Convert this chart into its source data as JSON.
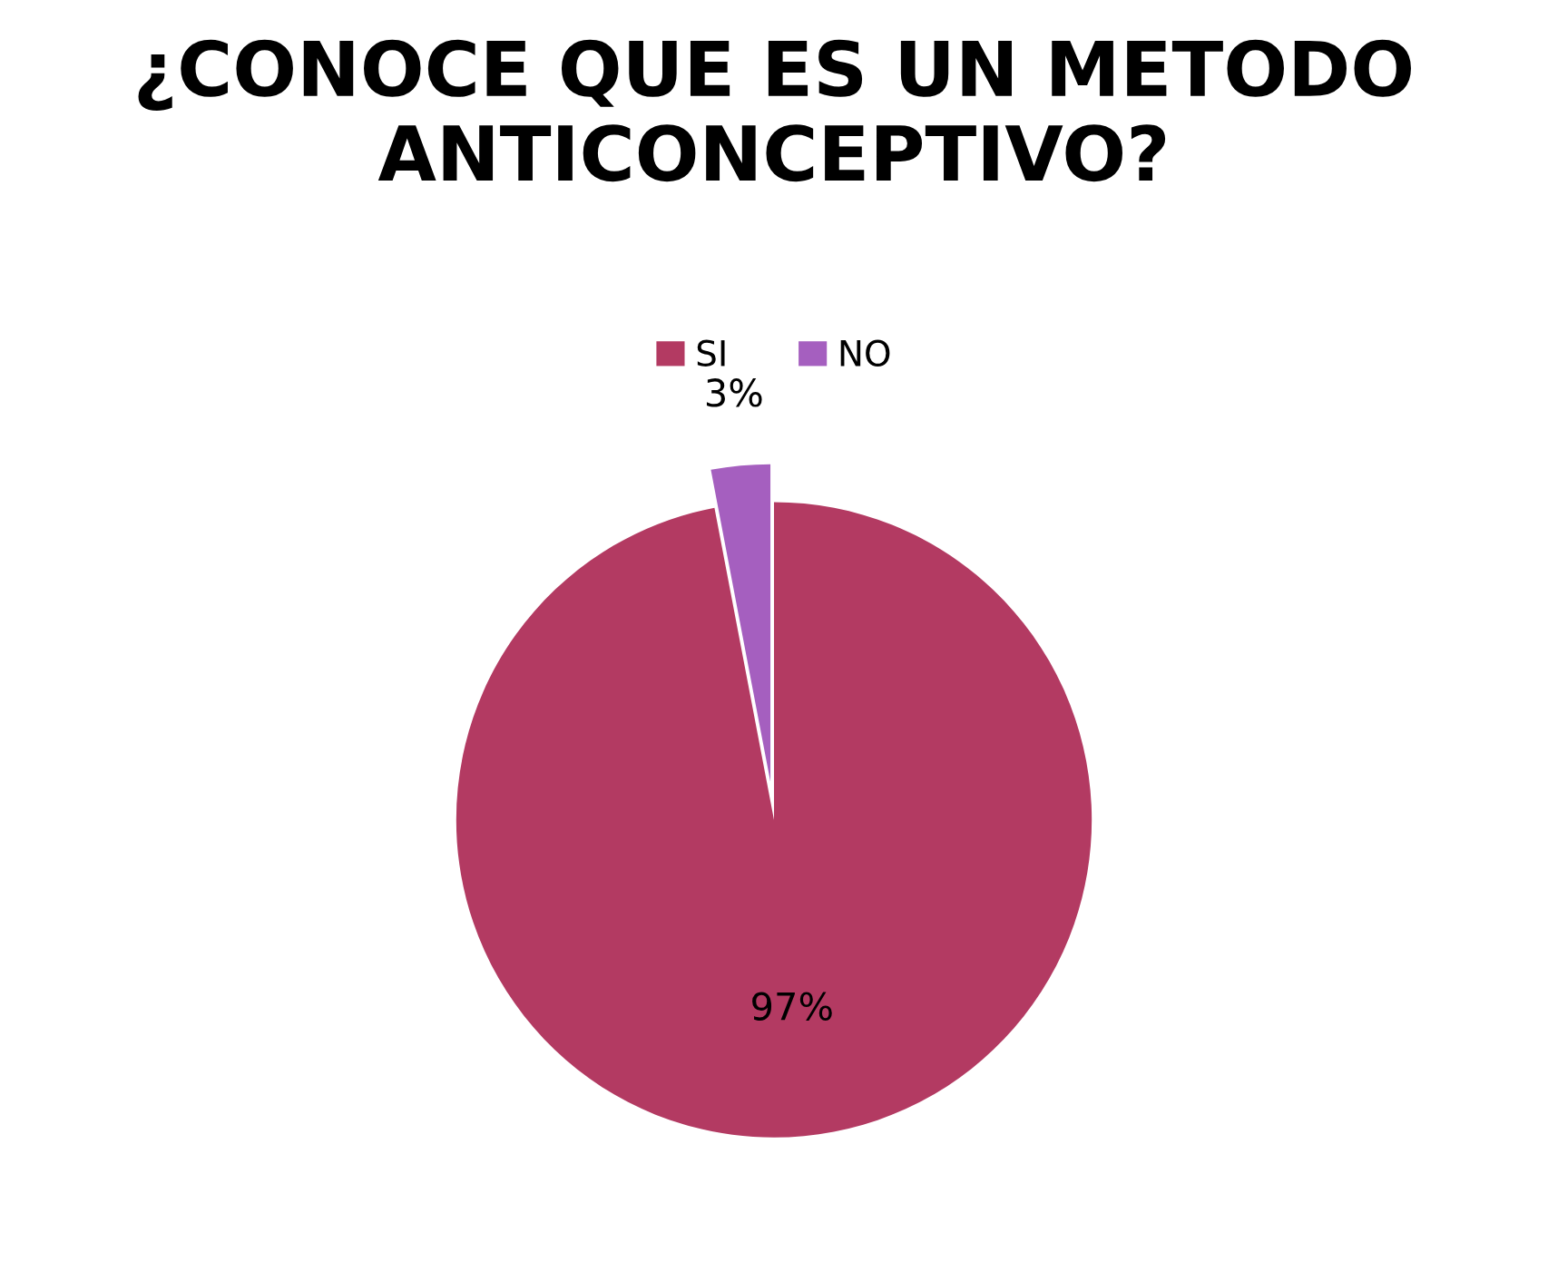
{
  "chart_data": {
    "type": "pie",
    "title": "¿CONOCE QUE ES UN METODO ANTICONCEPTIVO?",
    "categories": [
      "SI",
      "NO"
    ],
    "values": [
      97,
      3
    ],
    "colors": [
      "#b33a62",
      "#a55fbf"
    ],
    "value_labels": [
      "97%",
      "3%"
    ],
    "legend": "top"
  }
}
